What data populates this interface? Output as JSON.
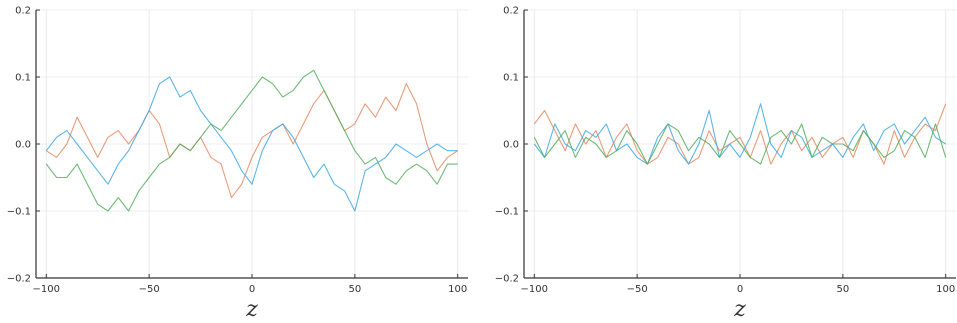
{
  "chart_data": [
    {
      "type": "line",
      "title": "",
      "xlabel": "z",
      "ylabel": "",
      "xlim": [
        -105,
        105
      ],
      "ylim": [
        -0.2,
        0.2
      ],
      "xticks": [
        -100,
        -50,
        0,
        50,
        100
      ],
      "xtick_labels": [
        "−100",
        "−50",
        "0",
        "50",
        "100"
      ],
      "yticks": [
        -0.2,
        -0.1,
        0.0,
        0.1,
        0.2
      ],
      "ytick_labels": [
        "−0.2",
        "−0.1",
        "0.0",
        "0.1",
        "0.2"
      ],
      "grid": true,
      "legend": "none",
      "series": [
        {
          "color": "#e58a63",
          "x": [
            -100,
            -95,
            -90,
            -85,
            -80,
            -75,
            -70,
            -65,
            -60,
            -55,
            -50,
            -45,
            -40,
            -35,
            -30,
            -25,
            -20,
            -15,
            -10,
            -5,
            0,
            5,
            10,
            15,
            20,
            25,
            30,
            35,
            40,
            45,
            50,
            55,
            60,
            65,
            70,
            75,
            80,
            85,
            90,
            95,
            100
          ],
          "y": [
            -0.01,
            -0.02,
            0.0,
            0.04,
            0.01,
            -0.02,
            0.01,
            0.02,
            0.0,
            0.02,
            0.05,
            0.03,
            -0.02,
            0.0,
            -0.01,
            0.01,
            -0.02,
            -0.03,
            -0.08,
            -0.06,
            -0.02,
            0.01,
            0.02,
            0.03,
            0.0,
            0.03,
            0.06,
            0.08,
            0.05,
            0.02,
            0.03,
            0.06,
            0.04,
            0.07,
            0.05,
            0.09,
            0.06,
            0.0,
            -0.04,
            -0.02,
            -0.01
          ]
        },
        {
          "color": "#3ea9e5",
          "x": [
            -100,
            -95,
            -90,
            -85,
            -80,
            -75,
            -70,
            -65,
            -60,
            -55,
            -50,
            -45,
            -40,
            -35,
            -30,
            -25,
            -20,
            -15,
            -10,
            -5,
            0,
            5,
            10,
            15,
            20,
            25,
            30,
            35,
            40,
            45,
            50,
            55,
            60,
            65,
            70,
            75,
            80,
            85,
            90,
            95,
            100
          ],
          "y": [
            -0.01,
            0.01,
            0.02,
            0.0,
            -0.02,
            -0.04,
            -0.06,
            -0.03,
            -0.01,
            0.02,
            0.05,
            0.09,
            0.1,
            0.07,
            0.08,
            0.05,
            0.03,
            0.01,
            -0.01,
            -0.04,
            -0.06,
            -0.01,
            0.02,
            0.03,
            0.01,
            -0.02,
            -0.05,
            -0.03,
            -0.06,
            -0.07,
            -0.1,
            -0.04,
            -0.03,
            -0.02,
            0.0,
            -0.01,
            -0.02,
            -0.01,
            0.0,
            -0.01,
            -0.01
          ]
        },
        {
          "color": "#55ae5f",
          "x": [
            -100,
            -95,
            -90,
            -85,
            -80,
            -75,
            -70,
            -65,
            -60,
            -55,
            -50,
            -45,
            -40,
            -35,
            -30,
            -25,
            -20,
            -15,
            -10,
            -5,
            0,
            5,
            10,
            15,
            20,
            25,
            30,
            35,
            40,
            45,
            50,
            55,
            60,
            65,
            70,
            75,
            80,
            85,
            90,
            95,
            100
          ],
          "y": [
            -0.03,
            -0.05,
            -0.05,
            -0.03,
            -0.06,
            -0.09,
            -0.1,
            -0.08,
            -0.1,
            -0.07,
            -0.05,
            -0.03,
            -0.02,
            0.0,
            -0.01,
            0.01,
            0.03,
            0.02,
            0.04,
            0.06,
            0.08,
            0.1,
            0.09,
            0.07,
            0.08,
            0.1,
            0.11,
            0.08,
            0.05,
            0.02,
            -0.01,
            -0.03,
            -0.02,
            -0.05,
            -0.06,
            -0.04,
            -0.03,
            -0.04,
            -0.06,
            -0.03,
            -0.03
          ]
        }
      ]
    },
    {
      "type": "line",
      "title": "",
      "xlabel": "z",
      "ylabel": "",
      "xlim": [
        -105,
        105
      ],
      "ylim": [
        -0.2,
        0.2
      ],
      "xticks": [
        -100,
        -50,
        0,
        50,
        100
      ],
      "xtick_labels": [
        "−100",
        "−50",
        "0",
        "50",
        "100"
      ],
      "yticks": [
        -0.2,
        -0.1,
        0.0,
        0.1,
        0.2
      ],
      "ytick_labels": [
        "−0.2",
        "−0.1",
        "0.0",
        "0.1",
        "0.2"
      ],
      "grid": true,
      "legend": "none",
      "series": [
        {
          "color": "#e58a63",
          "x": [
            -100,
            -95,
            -90,
            -85,
            -80,
            -75,
            -70,
            -65,
            -60,
            -55,
            -50,
            -45,
            -40,
            -35,
            -30,
            -25,
            -20,
            -15,
            -10,
            -5,
            0,
            5,
            10,
            15,
            20,
            25,
            30,
            35,
            40,
            45,
            50,
            55,
            60,
            65,
            70,
            75,
            80,
            85,
            90,
            95,
            100
          ],
          "y": [
            0.03,
            0.05,
            0.02,
            -0.01,
            0.03,
            0.0,
            0.02,
            -0.02,
            0.01,
            0.03,
            -0.01,
            -0.03,
            -0.02,
            0.01,
            0.0,
            -0.03,
            -0.02,
            0.02,
            -0.01,
            0.0,
            0.01,
            -0.02,
            0.02,
            -0.03,
            0.0,
            0.02,
            -0.01,
            0.01,
            -0.02,
            0.0,
            0.01,
            -0.02,
            0.02,
            0.0,
            -0.03,
            0.02,
            -0.02,
            0.01,
            0.03,
            0.02,
            0.06
          ]
        },
        {
          "color": "#3ea9e5",
          "x": [
            -100,
            -95,
            -90,
            -85,
            -80,
            -75,
            -70,
            -65,
            -60,
            -55,
            -50,
            -45,
            -40,
            -35,
            -30,
            -25,
            -20,
            -15,
            -10,
            -5,
            0,
            5,
            10,
            15,
            20,
            25,
            30,
            35,
            40,
            45,
            50,
            55,
            60,
            65,
            70,
            75,
            80,
            85,
            90,
            95,
            100
          ],
          "y": [
            0.0,
            -0.02,
            0.03,
            0.0,
            -0.01,
            0.02,
            0.01,
            0.03,
            -0.01,
            0.0,
            -0.02,
            -0.03,
            0.01,
            0.03,
            -0.01,
            -0.03,
            0.0,
            0.05,
            -0.02,
            0.0,
            -0.02,
            0.01,
            0.06,
            0.0,
            -0.02,
            0.02,
            0.01,
            -0.02,
            -0.01,
            0.0,
            -0.02,
            0.01,
            0.03,
            -0.01,
            0.02,
            0.03,
            0.0,
            0.02,
            0.04,
            0.01,
            0.0
          ]
        },
        {
          "color": "#55ae5f",
          "x": [
            -100,
            -95,
            -90,
            -85,
            -80,
            -75,
            -70,
            -65,
            -60,
            -55,
            -50,
            -45,
            -40,
            -35,
            -30,
            -25,
            -20,
            -15,
            -10,
            -5,
            0,
            5,
            10,
            15,
            20,
            25,
            30,
            35,
            40,
            45,
            50,
            55,
            60,
            65,
            70,
            75,
            80,
            85,
            90,
            95,
            100
          ],
          "y": [
            0.01,
            -0.02,
            0.0,
            0.02,
            -0.02,
            0.01,
            0.0,
            -0.02,
            -0.01,
            0.02,
            0.0,
            -0.03,
            0.0,
            0.03,
            0.02,
            -0.01,
            0.01,
            0.0,
            -0.02,
            0.02,
            0.0,
            -0.02,
            -0.03,
            0.01,
            0.02,
            0.0,
            0.03,
            -0.02,
            0.01,
            0.0,
            0.0,
            -0.01,
            0.02,
            0.0,
            -0.02,
            -0.01,
            0.02,
            0.01,
            -0.02,
            0.03,
            -0.02
          ]
        }
      ]
    }
  ]
}
